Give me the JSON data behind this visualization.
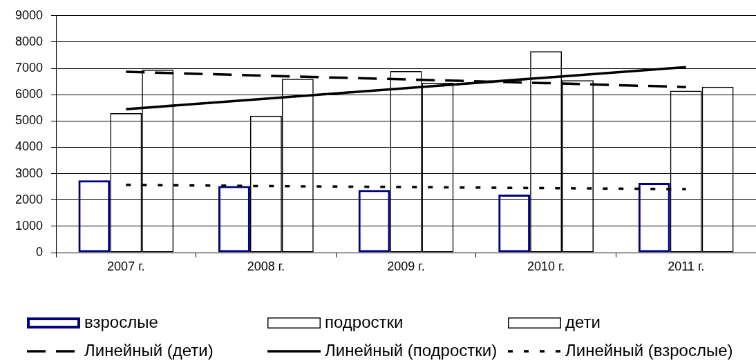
{
  "chart_data": {
    "type": "bar",
    "categories": [
      "2007 г.",
      "2008 г.",
      "2009 г.",
      "2010 г.",
      "2011 г."
    ],
    "series": [
      {
        "name": "взрослые",
        "color": "#000080",
        "values": [
          2750,
          2530,
          2380,
          2200,
          2650
        ]
      },
      {
        "name": "подростки",
        "color": "#000000",
        "values": [
          5300,
          5200,
          6900,
          7650,
          6150
        ]
      },
      {
        "name": "дети",
        "color": "#000000",
        "values": [
          6950,
          6600,
          6450,
          6550,
          6300
        ]
      },
      {
        "name": "Линейный (дети)",
        "type": "line",
        "color": "#000000",
        "line_style": "dashed",
        "values": [
          6870,
          6720,
          6580,
          6440,
          6290
        ]
      },
      {
        "name": "Линейный (подростки)",
        "type": "line",
        "color": "#000000",
        "line_style": "solid",
        "values": [
          5450,
          5850,
          6250,
          6650,
          7050
        ]
      },
      {
        "name": "Линейный (взрослые)",
        "type": "line",
        "color": "#000000",
        "line_style": "dotted",
        "values": [
          2570,
          2530,
          2490,
          2450,
          2410
        ]
      }
    ],
    "ylim": [
      0,
      9000
    ],
    "yticks": [
      0,
      1000,
      2000,
      3000,
      4000,
      5000,
      6000,
      7000,
      8000,
      9000
    ],
    "grid": "y",
    "legend": "bottom",
    "marker": "none"
  }
}
